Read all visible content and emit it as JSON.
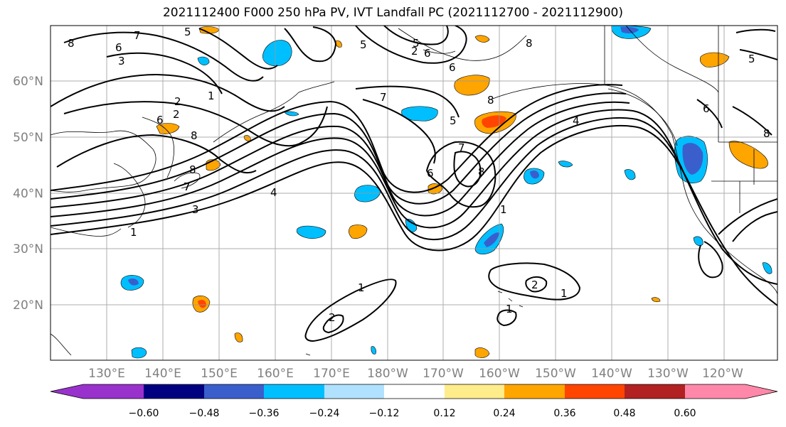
{
  "title": "2021112400 F000 250 hPa PV, IVT Landfall PC (2021112700 - 2021112900)",
  "lat_labels": [
    "60°N",
    "50°N",
    "40°N",
    "30°N",
    "20°N"
  ],
  "lon_labels": [
    "130°E",
    "140°E",
    "150°E",
    "160°E",
    "170°E",
    "180°W",
    "170°W",
    "160°W",
    "150°W",
    "140°W",
    "130°W",
    "120°W"
  ],
  "colorbar": {
    "colors": [
      "#9932cc",
      "#000080",
      "#3a5fcd",
      "#00bfff",
      "#b0e2ff",
      "#ffffff",
      "#ffec8b",
      "#ffa500",
      "#ff4500",
      "#b22222",
      "#ff88aa"
    ],
    "tick_labels": [
      "−0.60",
      "−0.48",
      "−0.36",
      "−0.24",
      "−0.12",
      "0.12",
      "0.24",
      "0.36",
      "0.48",
      "0.60"
    ]
  },
  "contour_labels": [
    "8",
    "7",
    "6",
    "5",
    "3",
    "2",
    "1",
    "2",
    "6",
    "8",
    "5",
    "2",
    "6",
    "8",
    "6",
    "5",
    "7",
    "8",
    "5",
    "7",
    "8",
    "6",
    "4",
    "3",
    "1",
    "8",
    "7",
    "4",
    "1",
    "6",
    "8",
    "5",
    "1",
    "2",
    "1",
    "2",
    "1",
    "7"
  ]
}
